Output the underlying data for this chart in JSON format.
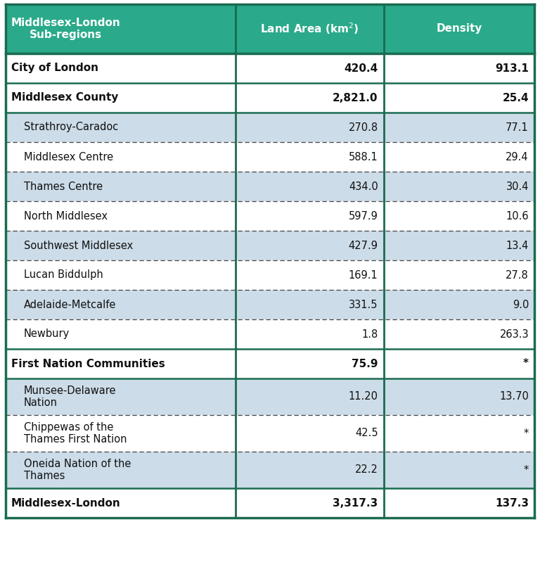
{
  "header": [
    "Middlesex-London\nSub-regions",
    "Land Area (km²)",
    "Density"
  ],
  "header_col2": "Land Area (km",
  "header_col2_sup": "2",
  "header_col2_rest": ")",
  "rows": [
    {
      "label": "City of London",
      "land_area": "420.4",
      "density": "913.1",
      "bold": true,
      "indent": 0,
      "bg": "#ffffff",
      "separator": "solid"
    },
    {
      "label": "Middlesex County",
      "land_area": "2,821.0",
      "density": "25.4",
      "bold": true,
      "indent": 0,
      "bg": "#ffffff",
      "separator": "solid"
    },
    {
      "label": "Strathroy-Caradoc",
      "land_area": "270.8",
      "density": "77.1",
      "bold": false,
      "indent": 1,
      "bg": "#ccdce8",
      "separator": "dashed"
    },
    {
      "label": "Middlesex Centre",
      "land_area": "588.1",
      "density": "29.4",
      "bold": false,
      "indent": 1,
      "bg": "#ffffff",
      "separator": "dashed"
    },
    {
      "label": "Thames Centre",
      "land_area": "434.0",
      "density": "30.4",
      "bold": false,
      "indent": 1,
      "bg": "#ccdce8",
      "separator": "dashed"
    },
    {
      "label": "North Middlesex",
      "land_area": "597.9",
      "density": "10.6",
      "bold": false,
      "indent": 1,
      "bg": "#ffffff",
      "separator": "dashed"
    },
    {
      "label": "Southwest Middlesex",
      "land_area": "427.9",
      "density": "13.4",
      "bold": false,
      "indent": 1,
      "bg": "#ccdce8",
      "separator": "dashed"
    },
    {
      "label": "Lucan Biddulph",
      "land_area": "169.1",
      "density": "27.8",
      "bold": false,
      "indent": 1,
      "bg": "#ffffff",
      "separator": "dashed"
    },
    {
      "label": "Adelaide-Metcalfe",
      "land_area": "331.5",
      "density": "9.0",
      "bold": false,
      "indent": 1,
      "bg": "#ccdce8",
      "separator": "dashed"
    },
    {
      "label": "Newbury",
      "land_area": "1.8",
      "density": "263.3",
      "bold": false,
      "indent": 1,
      "bg": "#ffffff",
      "separator": "solid"
    },
    {
      "label": "First Nation Communities",
      "land_area": "75.9",
      "density": "*",
      "bold": true,
      "indent": 0,
      "bg": "#ffffff",
      "separator": "solid"
    },
    {
      "label": "Munsee-Delaware\nNation",
      "land_area": "11.20",
      "density": "13.70",
      "bold": false,
      "indent": 1,
      "bg": "#ccdce8",
      "separator": "dashed"
    },
    {
      "label": "Chippewas of the\nThames First Nation",
      "land_area": "42.5",
      "density": "*",
      "bold": false,
      "indent": 1,
      "bg": "#ffffff",
      "separator": "dashed"
    },
    {
      "label": "Oneida Nation of the\nThames",
      "land_area": "22.2",
      "density": "*",
      "bold": false,
      "indent": 1,
      "bg": "#ccdce8",
      "separator": "solid"
    },
    {
      "label": "Middlesex-London",
      "land_area": "3,317.3",
      "density": "137.3",
      "bold": true,
      "indent": 0,
      "bg": "#ffffff",
      "separator": "solid"
    }
  ],
  "header_bg": "#2aaa8a",
  "header_text_color": "#ffffff",
  "border_color": "#1a6b50",
  "dashed_color": "#444444",
  "text_color": "#111111",
  "fig_width": 7.68,
  "fig_height": 8.06,
  "dpi": 100
}
